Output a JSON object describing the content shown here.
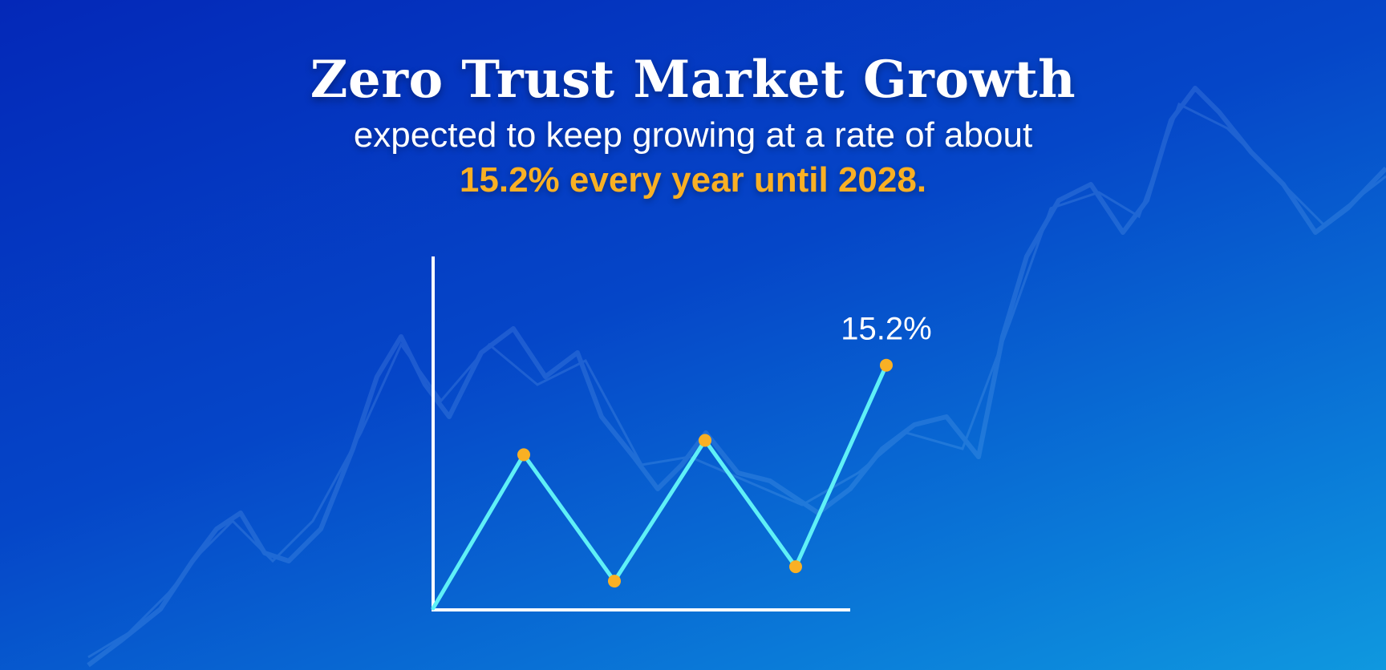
{
  "header": {
    "title": "Zero Trust Market Growth",
    "subtitle": "expected to keep growing at a rate of about",
    "highlight": "15.2% every year until 2028."
  },
  "colors": {
    "line": "#5ff0f7",
    "point": "#f9b024",
    "axis": "#ffffff",
    "highlight": "#f9b024"
  },
  "chart_data": {
    "type": "line",
    "title": "",
    "xlabel": "",
    "ylabel": "",
    "x": [
      0,
      1,
      2,
      3,
      4,
      5
    ],
    "values": [
      0,
      9.6,
      1.7,
      10.5,
      2.6,
      15.2
    ],
    "ylim": [
      0,
      22
    ],
    "grid": false,
    "annotations": [
      {
        "point_index": 5,
        "text": "15.2%"
      }
    ]
  }
}
